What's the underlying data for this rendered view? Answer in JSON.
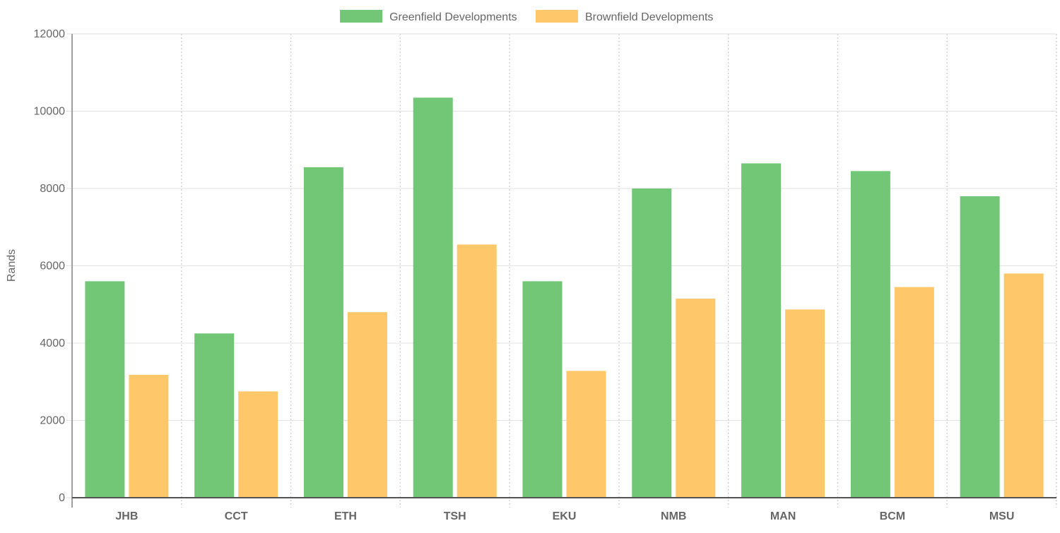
{
  "chart_data": {
    "type": "bar",
    "title": "",
    "xlabel": "",
    "ylabel": "Rands",
    "ylim": [
      0,
      12000
    ],
    "y_ticks": [
      "0",
      "2000",
      "4000",
      "6000",
      "8000",
      "10000",
      "12000"
    ],
    "categories": [
      "JHB",
      "CCT",
      "ETH",
      "TSH",
      "EKU",
      "NMB",
      "MAN",
      "BCM",
      "MSU"
    ],
    "series": [
      {
        "name": "Greenfield Developments",
        "color": "#71c776",
        "values": [
          5600,
          4250,
          8550,
          10350,
          5600,
          8000,
          8650,
          8450,
          7800
        ]
      },
      {
        "name": "Brownfield Developments",
        "color": "#fec86a",
        "values": [
          3180,
          2750,
          4800,
          6550,
          3280,
          5150,
          4870,
          5450,
          5800
        ]
      }
    ],
    "legend": "top",
    "grid": true
  }
}
